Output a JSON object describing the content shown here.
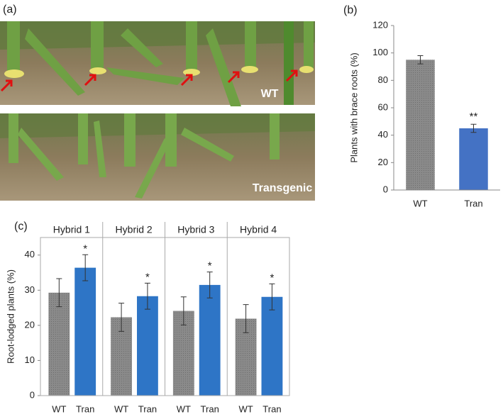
{
  "figure": {
    "panel_a": {
      "label": "(a)",
      "photo_labels": [
        "WT",
        "Transgenic"
      ]
    }
  },
  "chart_data": [
    {
      "type": "bar",
      "panel_label": "(b)",
      "y_label": "Plants with brace roots (%)",
      "categories": [
        "WT",
        "Tran"
      ],
      "values": [
        95,
        45
      ],
      "errors": [
        3,
        3
      ],
      "colors": [
        "#858585",
        "#4472c4"
      ],
      "annotations": [
        null,
        "**"
      ],
      "ylim": [
        0,
        120
      ],
      "yticks": [
        0,
        20,
        40,
        60,
        80,
        100,
        120
      ],
      "grid": false
    },
    {
      "type": "bar",
      "panel_label": "(c)",
      "y_label": "Root-lodged plants (%)",
      "categories": [
        "Hybrid 1",
        "Hybrid 2",
        "Hybrid 3",
        "Hybrid 4"
      ],
      "series": [
        {
          "name": "WT",
          "color": "#858585",
          "values": [
            29.3,
            22.3,
            24.1,
            21.9
          ],
          "errors": [
            4,
            4,
            4,
            4
          ]
        },
        {
          "name": "Tran",
          "color": "#2e75c6",
          "values": [
            36.4,
            28.3,
            31.5,
            28.1
          ],
          "errors": [
            3.7,
            3.7,
            3.7,
            3.7
          ],
          "annotations": [
            "*",
            "*",
            "*",
            "*"
          ]
        }
      ],
      "ylim": [
        0,
        45
      ],
      "yticks": [
        0,
        10,
        20,
        30,
        40
      ],
      "grid": false
    }
  ]
}
